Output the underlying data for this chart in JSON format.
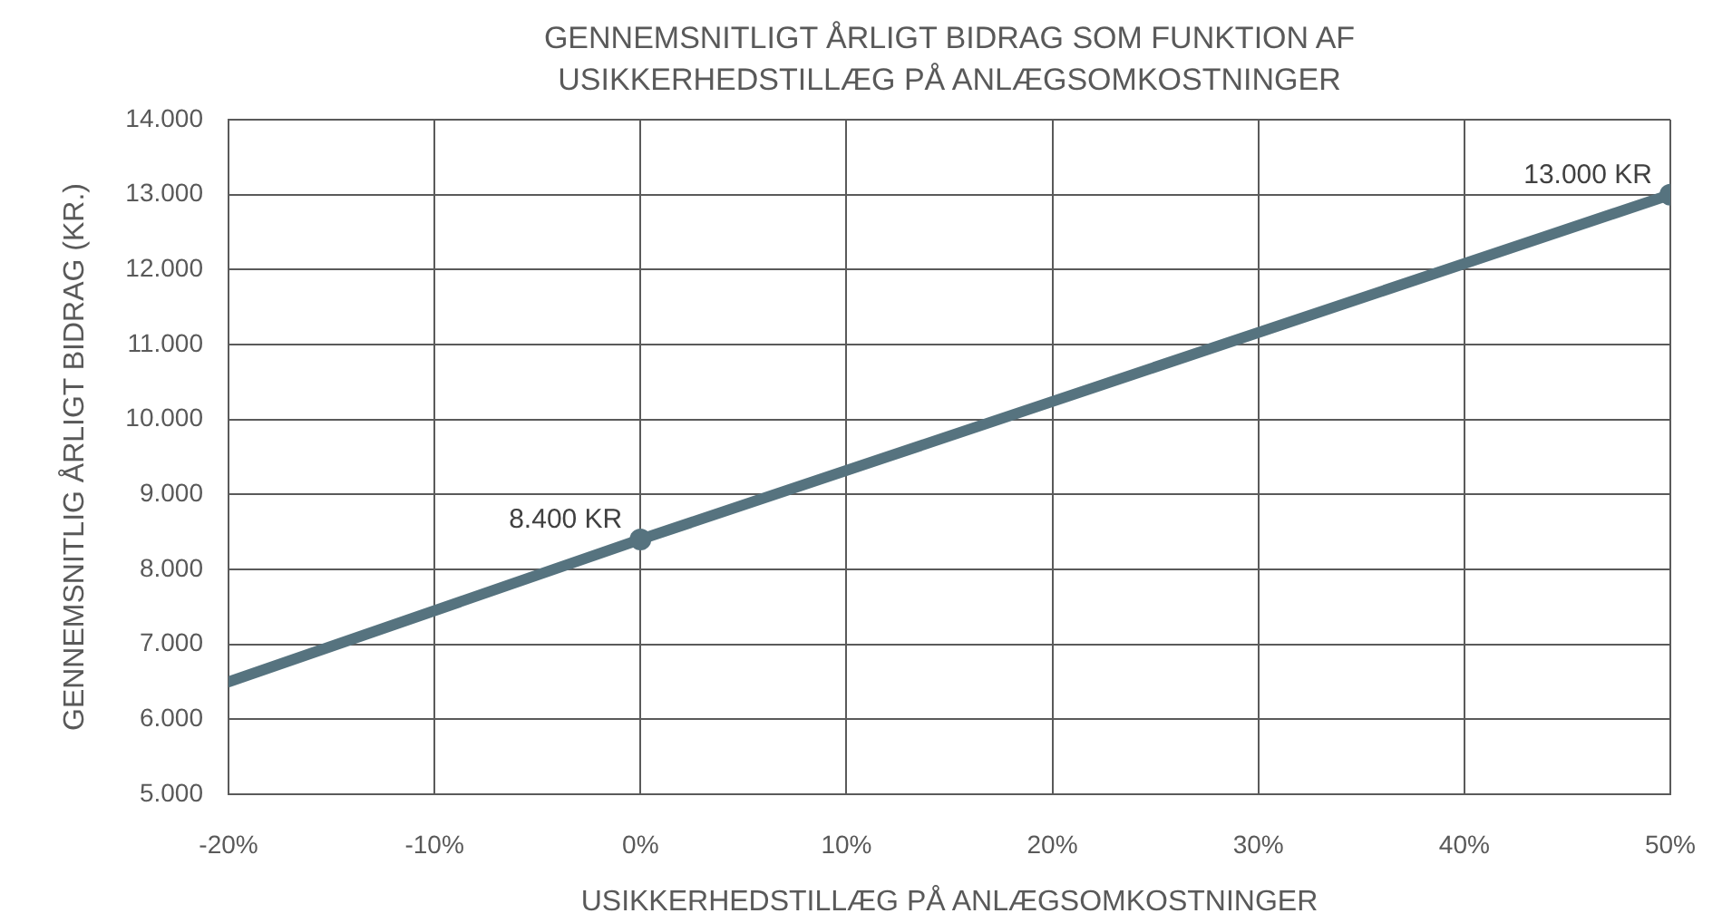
{
  "chart_data": {
    "type": "line",
    "title": "GENNEMSNITLIGT ÅRLIGT BIDRAG SOM FUNKTION AF USIKKERHEDSTILLÆG PÅ ANLÆGSOMKOSTNINGER",
    "xlabel": "USIKKERHEDSTILLÆG PÅ ANLÆGSOMKOSTNINGER",
    "ylabel": "GENNEMSNITLIG ÅRLIGT BIDRAG (KR.)",
    "series": [
      {
        "color": "#56737f",
        "x": [
          -20,
          0,
          50
        ],
        "values": [
          6500,
          8400,
          13000
        ],
        "marker": "none"
      },
      {
        "type": "scatter",
        "color": "#56737f",
        "x": [
          0,
          50
        ],
        "values": [
          8400,
          13000
        ],
        "marker": "circle",
        "value_labels": [
          "8.400 KR",
          "13.000 KR"
        ]
      }
    ],
    "xlim": [
      -20,
      50
    ],
    "xticks": [
      {
        "value": -20,
        "label": "-20%"
      },
      {
        "value": -10,
        "label": "-10%"
      },
      {
        "value": 0,
        "label": "0%"
      },
      {
        "value": 10,
        "label": "10%"
      },
      {
        "value": 20,
        "label": "20%"
      },
      {
        "value": 30,
        "label": "30%"
      },
      {
        "value": 40,
        "label": "40%"
      },
      {
        "value": 50,
        "label": "50%"
      }
    ],
    "ylim": [
      5000,
      14000
    ],
    "yticks": [
      {
        "value": 5000,
        "label": "5.000"
      },
      {
        "value": 6000,
        "label": "6.000"
      },
      {
        "value": 7000,
        "label": "7.000"
      },
      {
        "value": 8000,
        "label": "8.000"
      },
      {
        "value": 9000,
        "label": "9.000"
      },
      {
        "value": 10000,
        "label": "10.000"
      },
      {
        "value": 11000,
        "label": "11.000"
      },
      {
        "value": 12000,
        "label": "12.000"
      },
      {
        "value": 13000,
        "label": "13.000"
      },
      {
        "value": 14000,
        "label": "14.000"
      }
    ],
    "grid": true,
    "line_style": "solid"
  }
}
